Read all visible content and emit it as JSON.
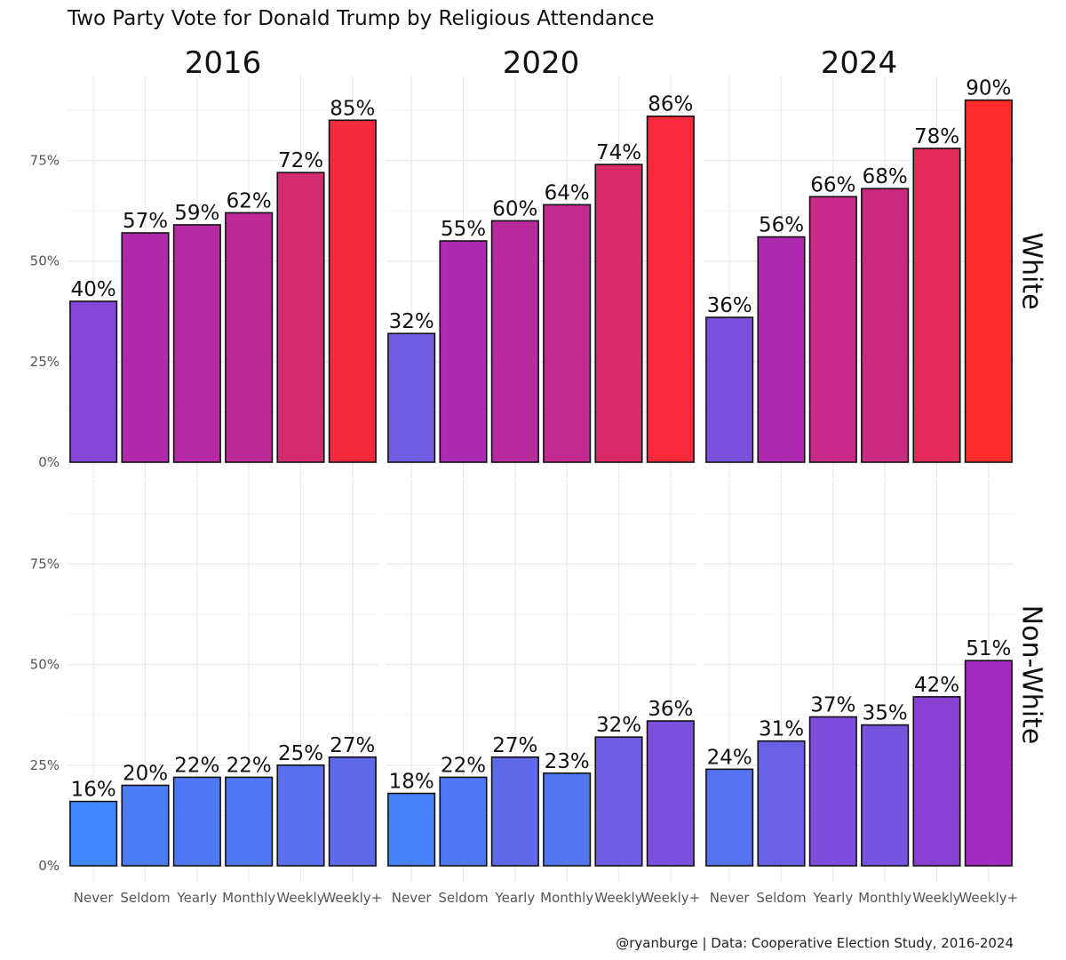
{
  "chart_data": {
    "type": "bar",
    "title": "Two Party Vote for Donald Trump by Religious Attendance",
    "caption": "@ryanburge | Data: Cooperative Election Study, 2016-2024",
    "categories": [
      "Never",
      "Seldom",
      "Yearly",
      "Monthly",
      "Weekly",
      "Weekly+"
    ],
    "columns": [
      "2016",
      "2020",
      "2024"
    ],
    "rows": [
      "White",
      "Non-White"
    ],
    "ylim": [
      0,
      0.95
    ],
    "yticks": [
      0,
      0.25,
      0.5,
      0.75
    ],
    "ytick_labels": [
      "0%",
      "25%",
      "50%",
      "75%"
    ],
    "xlabel": "",
    "ylabel": "",
    "grid": true,
    "color_scale": {
      "low": "#3d8bff",
      "mid": "#a12ac6",
      "high": "#ff2a2a"
    },
    "panels": [
      {
        "row": "White",
        "column": "2016",
        "values": [
          0.4,
          0.57,
          0.59,
          0.62,
          0.72,
          0.85
        ],
        "labels": [
          "40%",
          "57%",
          "59%",
          "62%",
          "72%",
          "85%"
        ]
      },
      {
        "row": "White",
        "column": "2020",
        "values": [
          0.32,
          0.55,
          0.6,
          0.64,
          0.74,
          0.86
        ],
        "labels": [
          "32%",
          "55%",
          "60%",
          "64%",
          "74%",
          "86%"
        ]
      },
      {
        "row": "White",
        "column": "2024",
        "values": [
          0.36,
          0.56,
          0.66,
          0.68,
          0.78,
          0.9
        ],
        "labels": [
          "36%",
          "56%",
          "66%",
          "68%",
          "78%",
          "90%"
        ]
      },
      {
        "row": "Non-White",
        "column": "2016",
        "values": [
          0.16,
          0.2,
          0.22,
          0.22,
          0.25,
          0.27
        ],
        "labels": [
          "16%",
          "20%",
          "22%",
          "22%",
          "25%",
          "27%"
        ]
      },
      {
        "row": "Non-White",
        "column": "2020",
        "values": [
          0.18,
          0.22,
          0.27,
          0.23,
          0.32,
          0.36
        ],
        "labels": [
          "18%",
          "22%",
          "27%",
          "23%",
          "32%",
          "36%"
        ]
      },
      {
        "row": "Non-White",
        "column": "2024",
        "values": [
          0.24,
          0.31,
          0.37,
          0.35,
          0.42,
          0.51
        ],
        "labels": [
          "24%",
          "31%",
          "37%",
          "35%",
          "42%",
          "51%"
        ]
      }
    ]
  }
}
